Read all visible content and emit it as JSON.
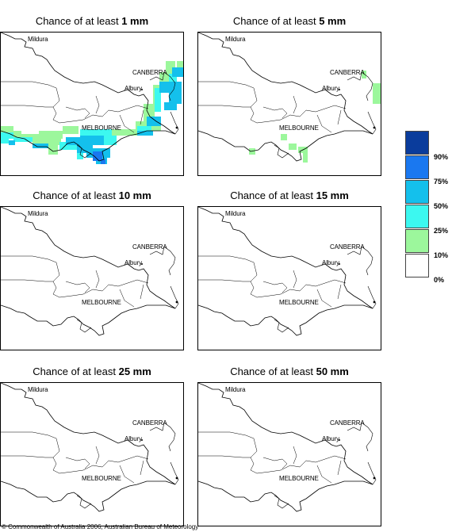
{
  "panels": [
    {
      "prefix": "Chance of at least ",
      "amount": "1 mm"
    },
    {
      "prefix": "Chance of at least ",
      "amount": "5 mm"
    },
    {
      "prefix": "Chance of at least ",
      "amount": "10 mm"
    },
    {
      "prefix": "Chance of at least ",
      "amount": "15 mm"
    },
    {
      "prefix": "Chance of at least ",
      "amount": "25 mm"
    },
    {
      "prefix": "Chance of at least ",
      "amount": "50 mm"
    }
  ],
  "places": {
    "mildura": "Mildura",
    "canberra": "CANBERRA",
    "albury": "Albury",
    "melbourne": "MELBOURNE"
  },
  "legend": {
    "labels": [
      "90%",
      "75%",
      "50%",
      "25%",
      "10%",
      "0%"
    ],
    "colors": [
      "#0a3c9c",
      "#1a78f0",
      "#14c0ec",
      "#3cf8f0",
      "#9cf79c",
      "#ffffff"
    ]
  },
  "colors": {
    "dark_blue": "#0a3c9c",
    "blue": "#1a78f0",
    "light_blue": "#14c0ec",
    "cyan": "#3cf8f0",
    "green": "#9cf79c"
  },
  "copyright": "© Commonwealth of Australia 2006, Australian Bureau of Meteorology"
}
